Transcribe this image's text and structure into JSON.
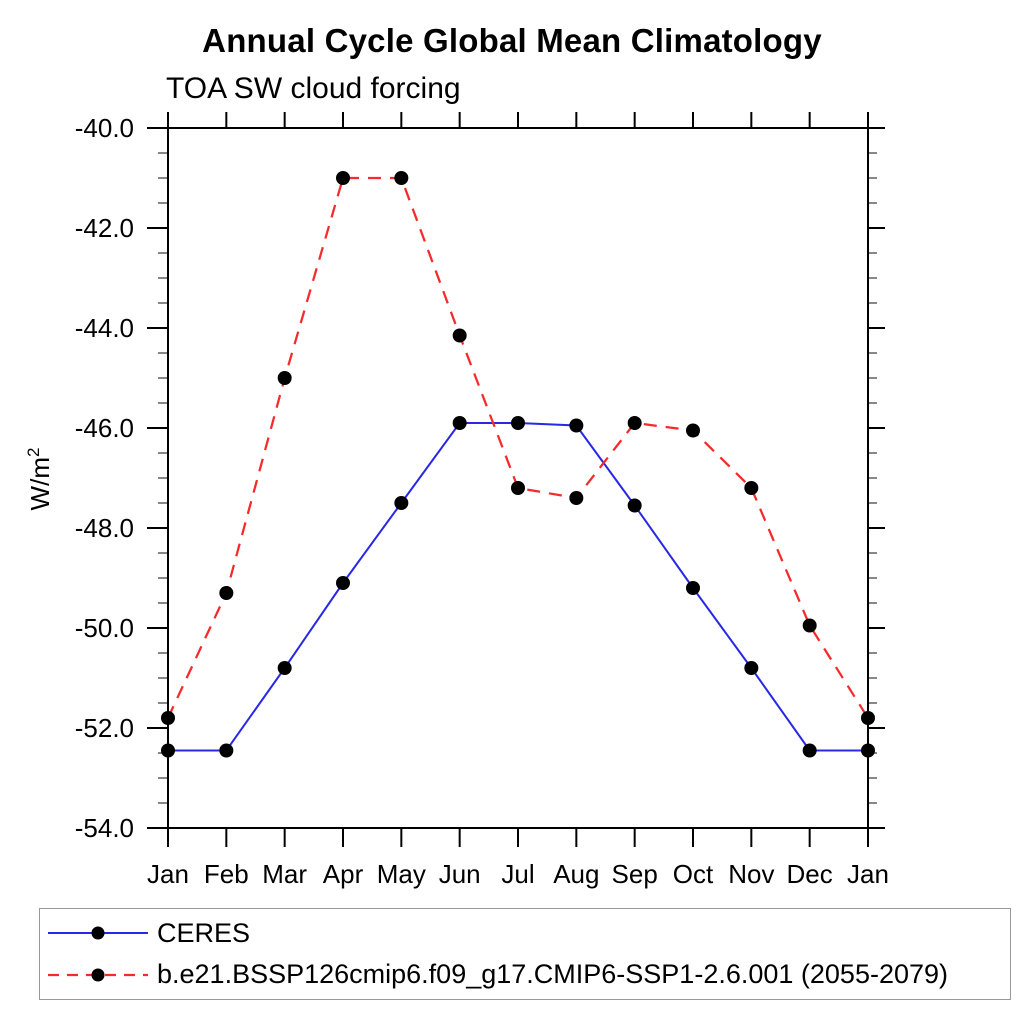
{
  "chart_data": {
    "type": "line",
    "title": "Annual Cycle Global Mean Climatology",
    "subtitle": "TOA SW cloud forcing",
    "ylabel": "W/m",
    "ylabel_sup": "2",
    "x_categories": [
      "Jan",
      "Feb",
      "Mar",
      "Apr",
      "May",
      "Jun",
      "Jul",
      "Aug",
      "Sep",
      "Oct",
      "Nov",
      "Dec",
      "Jan"
    ],
    "ylim": [
      -54.0,
      -40.0
    ],
    "ytick_step": 2.0,
    "ytick_minor_step": 0.5,
    "ytick_labels": [
      "-40.0",
      "-42.0",
      "-44.0",
      "-46.0",
      "-48.0",
      "-50.0",
      "-52.0",
      "-54.0"
    ],
    "grid": false,
    "legend_position": "bottom",
    "axis_color": "#000000",
    "minor_tick_color": "#888888",
    "series": [
      {
        "name": "CERES",
        "color": "#2828e6",
        "line_style": "solid",
        "marker": "filled-circle",
        "marker_color": "#000000",
        "values": [
          -52.45,
          -52.45,
          -50.8,
          -49.1,
          -47.5,
          -45.9,
          -45.9,
          -45.95,
          -47.55,
          -49.2,
          -50.8,
          -52.45,
          -52.45
        ]
      },
      {
        "name": "b.e21.BSSP126cmip6.f09_g17.CMIP6-SSP1-2.6.001 (2055-2079)",
        "color": "#f52a2a",
        "line_style": "dashed",
        "marker": "filled-circle",
        "marker_color": "#000000",
        "values": [
          -51.8,
          -49.3,
          -45.0,
          -41.0,
          -41.0,
          -44.15,
          -47.2,
          -47.4,
          -45.9,
          -46.05,
          -47.2,
          -49.95,
          -51.8
        ]
      }
    ]
  }
}
